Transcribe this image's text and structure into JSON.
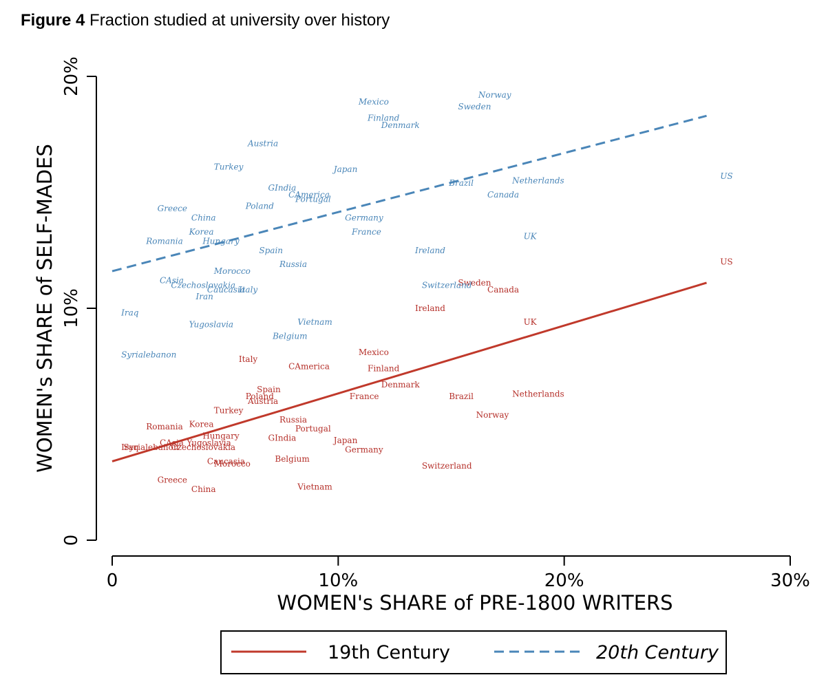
{
  "figure": {
    "label": "Figure 4",
    "caption": "Fraction studied at university over history"
  },
  "chart_data": {
    "type": "scatter",
    "xlabel": "WOMEN's SHARE of PRE-1800 WRITERS",
    "ylabel": "WOMEN's SHARE of SELF-MADES",
    "xlim": [
      0,
      30
    ],
    "ylim": [
      0,
      20
    ],
    "x_ticks": [
      0,
      10,
      20,
      30
    ],
    "x_tick_labels": [
      "0",
      "10%",
      "20%",
      "30%"
    ],
    "y_ticks": [
      0,
      10,
      20
    ],
    "y_tick_labels": [
      "0",
      "10%",
      "20%"
    ],
    "legend_position": "bottom-center",
    "colors": {
      "19th": "#c0392b",
      "20th": "#4a86b8"
    },
    "series": [
      {
        "name": "19th Century",
        "style": "solid",
        "fit": {
          "x": [
            0,
            26.3
          ],
          "y": [
            3.4,
            11.1
          ]
        },
        "points": [
          {
            "label": "US",
            "x": 26.9,
            "y": 12.0
          },
          {
            "label": "Sweden",
            "x": 15.3,
            "y": 11.1
          },
          {
            "label": "Canada",
            "x": 16.6,
            "y": 10.8
          },
          {
            "label": "Ireland",
            "x": 13.4,
            "y": 10.0
          },
          {
            "label": "UK",
            "x": 18.2,
            "y": 9.4
          },
          {
            "label": "Mexico",
            "x": 10.9,
            "y": 8.1
          },
          {
            "label": "Italy",
            "x": 5.6,
            "y": 7.8
          },
          {
            "label": "CAmerica",
            "x": 7.8,
            "y": 7.5
          },
          {
            "label": "Finland",
            "x": 11.3,
            "y": 7.4
          },
          {
            "label": "Denmark",
            "x": 11.9,
            "y": 6.7
          },
          {
            "label": "Spain",
            "x": 6.4,
            "y": 6.5
          },
          {
            "label": "Poland",
            "x": 5.9,
            "y": 6.2
          },
          {
            "label": "Austria",
            "x": 6.0,
            "y": 6.0
          },
          {
            "label": "France",
            "x": 10.5,
            "y": 6.2
          },
          {
            "label": "Brazil",
            "x": 14.9,
            "y": 6.2
          },
          {
            "label": "Netherlands",
            "x": 17.7,
            "y": 6.3
          },
          {
            "label": "Turkey",
            "x": 4.5,
            "y": 5.6
          },
          {
            "label": "Norway",
            "x": 16.1,
            "y": 5.4
          },
          {
            "label": "Russia",
            "x": 7.4,
            "y": 5.2
          },
          {
            "label": "Romania",
            "x": 1.5,
            "y": 4.9
          },
          {
            "label": "Korea",
            "x": 3.4,
            "y": 5.0
          },
          {
            "label": "Portugal",
            "x": 8.1,
            "y": 4.8
          },
          {
            "label": "Hungary",
            "x": 4.0,
            "y": 4.5
          },
          {
            "label": "GIndia",
            "x": 6.9,
            "y": 4.4
          },
          {
            "label": "Japan",
            "x": 9.8,
            "y": 4.3
          },
          {
            "label": "CAsia",
            "x": 2.1,
            "y": 4.2
          },
          {
            "label": "Yugoslavia",
            "x": 3.3,
            "y": 4.2
          },
          {
            "label": "Iraq",
            "x": 0.4,
            "y": 4.0
          },
          {
            "label": "Syrialebanon",
            "x": 0.5,
            "y": 4.0
          },
          {
            "label": "Czechoslovakia",
            "x": 2.6,
            "y": 4.0
          },
          {
            "label": "Germany",
            "x": 10.3,
            "y": 3.9
          },
          {
            "label": "Caucasia",
            "x": 4.2,
            "y": 3.4
          },
          {
            "label": "Morocco",
            "x": 4.5,
            "y": 3.3
          },
          {
            "label": "Belgium",
            "x": 7.2,
            "y": 3.5
          },
          {
            "label": "Switzerland",
            "x": 13.7,
            "y": 3.2
          },
          {
            "label": "Greece",
            "x": 2.0,
            "y": 2.6
          },
          {
            "label": "China",
            "x": 3.5,
            "y": 2.2
          },
          {
            "label": "Vietnam",
            "x": 8.2,
            "y": 2.3
          }
        ]
      },
      {
        "name": "20th Century",
        "style": "dashed",
        "fit": {
          "x": [
            0,
            26.3
          ],
          "y": [
            11.6,
            18.3
          ]
        },
        "points": [
          {
            "label": "Norway",
            "x": 16.2,
            "y": 19.2
          },
          {
            "label": "Mexico",
            "x": 10.9,
            "y": 18.9
          },
          {
            "label": "Sweden",
            "x": 15.3,
            "y": 18.7
          },
          {
            "label": "Finland",
            "x": 11.3,
            "y": 18.2
          },
          {
            "label": "Denmark",
            "x": 11.9,
            "y": 17.9
          },
          {
            "label": "Austria",
            "x": 6.0,
            "y": 17.1
          },
          {
            "label": "Turkey",
            "x": 4.5,
            "y": 16.1
          },
          {
            "label": "Japan",
            "x": 9.8,
            "y": 16.0
          },
          {
            "label": "US",
            "x": 26.9,
            "y": 15.7
          },
          {
            "label": "Netherlands",
            "x": 17.7,
            "y": 15.5
          },
          {
            "label": "Brazil",
            "x": 14.9,
            "y": 15.4
          },
          {
            "label": "GIndia",
            "x": 6.9,
            "y": 15.2
          },
          {
            "label": "Canada",
            "x": 16.6,
            "y": 14.9
          },
          {
            "label": "CAmerica",
            "x": 7.8,
            "y": 14.9
          },
          {
            "label": "Portugal",
            "x": 8.1,
            "y": 14.7
          },
          {
            "label": "Poland",
            "x": 5.9,
            "y": 14.4
          },
          {
            "label": "Greece",
            "x": 2.0,
            "y": 14.3
          },
          {
            "label": "China",
            "x": 3.5,
            "y": 13.9
          },
          {
            "label": "Germany",
            "x": 10.3,
            "y": 13.9
          },
          {
            "label": "Korea",
            "x": 3.4,
            "y": 13.3
          },
          {
            "label": "France",
            "x": 10.6,
            "y": 13.3
          },
          {
            "label": "UK",
            "x": 18.2,
            "y": 13.1
          },
          {
            "label": "Romania",
            "x": 1.5,
            "y": 12.9
          },
          {
            "label": "Hungary",
            "x": 4.0,
            "y": 12.9
          },
          {
            "label": "Spain",
            "x": 6.5,
            "y": 12.5
          },
          {
            "label": "Ireland",
            "x": 13.4,
            "y": 12.5
          },
          {
            "label": "Russia",
            "x": 7.4,
            "y": 11.9
          },
          {
            "label": "Morocco",
            "x": 4.5,
            "y": 11.6
          },
          {
            "label": "CAsia",
            "x": 2.1,
            "y": 11.2
          },
          {
            "label": "Czechoslovakia",
            "x": 2.6,
            "y": 11.0
          },
          {
            "label": "Switzerland",
            "x": 13.7,
            "y": 11.0
          },
          {
            "label": "Caucasia",
            "x": 4.2,
            "y": 10.8
          },
          {
            "label": "Italy",
            "x": 5.6,
            "y": 10.8
          },
          {
            "label": "Iran",
            "x": 3.7,
            "y": 10.5
          },
          {
            "label": "Iraq",
            "x": 0.4,
            "y": 9.8
          },
          {
            "label": "Vietnam",
            "x": 8.2,
            "y": 9.4
          },
          {
            "label": "Yugoslavia",
            "x": 3.4,
            "y": 9.3
          },
          {
            "label": "Belgium",
            "x": 7.1,
            "y": 8.8
          },
          {
            "label": "Syrialebanon",
            "x": 0.4,
            "y": 8.0
          }
        ]
      }
    ]
  }
}
